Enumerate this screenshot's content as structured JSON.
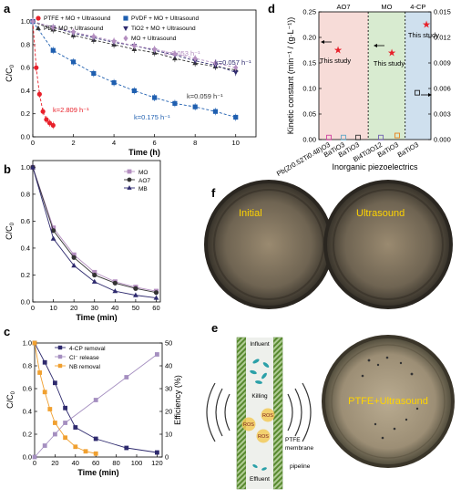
{
  "panel_labels": {
    "a": "a",
    "b": "b",
    "c": "c",
    "d": "d",
    "e": "e",
    "f": "f"
  },
  "chart_data": [
    {
      "panel": "a",
      "type": "scatter",
      "xlabel": "Time (h)",
      "ylabel": "C/C0",
      "xlim": [
        0,
        11
      ],
      "ylim": [
        0,
        1.1
      ],
      "xticks": [
        "0",
        "2",
        "4",
        "6",
        "8",
        "10"
      ],
      "yticks": [
        "0.0",
        "0.2",
        "0.4",
        "0.6",
        "0.8",
        "1.0"
      ],
      "series": [
        {
          "name": "PTFE + MO + Ultrasound",
          "color": "#e8202a",
          "marker": "circle",
          "x": [
            0,
            0.17,
            0.33,
            0.5,
            0.67,
            0.83,
            1.0
          ],
          "y": [
            1.0,
            0.6,
            0.37,
            0.22,
            0.15,
            0.12,
            0.1
          ]
        },
        {
          "name": "PE + MO + Ultrasound",
          "color": "#333333",
          "marker": "triangle-up",
          "x": [
            0,
            1,
            2,
            3,
            4,
            5,
            6,
            7,
            8,
            9,
            10
          ],
          "y": [
            1.0,
            0.93,
            0.88,
            0.84,
            0.8,
            0.76,
            0.73,
            0.68,
            0.64,
            0.61,
            0.58
          ]
        },
        {
          "name": "PVDF + MO + Ultrasound",
          "color": "#1f5fb0",
          "marker": "square",
          "x": [
            0,
            1,
            2,
            3,
            4,
            5,
            6,
            7,
            8,
            9,
            10
          ],
          "y": [
            1.0,
            0.75,
            0.65,
            0.55,
            0.47,
            0.4,
            0.34,
            0.29,
            0.26,
            0.22,
            0.17
          ]
        },
        {
          "name": "TiO2 + MO + Ultrasound",
          "color": "#2e2a6e",
          "marker": "triangle-down",
          "x": [
            0,
            1,
            2,
            3,
            4,
            5,
            6,
            7,
            8,
            9,
            10
          ],
          "y": [
            1.0,
            0.95,
            0.9,
            0.86,
            0.82,
            0.79,
            0.75,
            0.71,
            0.66,
            0.62,
            0.56
          ]
        },
        {
          "name": "MO + Ultrasound",
          "color": "#b48ec0",
          "marker": "diamond",
          "x": [
            0,
            1,
            2,
            3,
            4,
            5,
            6,
            7,
            8,
            9,
            10
          ],
          "y": [
            1.0,
            0.95,
            0.91,
            0.87,
            0.83,
            0.79,
            0.76,
            0.72,
            0.68,
            0.64,
            0.6
          ]
        }
      ],
      "annotations": [
        "k=2.809 h⁻¹",
        "k=0.175 h⁻¹",
        "k=0.053 h⁻¹",
        "k=0.057 h⁻¹",
        "k=0.059 h⁻¹"
      ]
    },
    {
      "panel": "b",
      "type": "line",
      "xlabel": "Time (min)",
      "ylabel": "C/C0",
      "xlim": [
        0,
        62
      ],
      "ylim": [
        0,
        1.05
      ],
      "xticks": [
        "0",
        "10",
        "20",
        "30",
        "40",
        "50",
        "60"
      ],
      "yticks": [
        "0.0",
        "0.2",
        "0.4",
        "0.6",
        "0.8",
        "1.0"
      ],
      "x": [
        0,
        10,
        20,
        30,
        40,
        50,
        60
      ],
      "series": [
        {
          "name": "MO",
          "color": "#b48ec0",
          "marker": "square",
          "values": [
            1.0,
            0.55,
            0.35,
            0.22,
            0.15,
            0.11,
            0.08
          ]
        },
        {
          "name": "AO7",
          "color": "#333333",
          "marker": "circle",
          "values": [
            1.0,
            0.53,
            0.33,
            0.2,
            0.14,
            0.1,
            0.07
          ]
        },
        {
          "name": "MB",
          "color": "#2e2a6e",
          "marker": "triangle-up",
          "values": [
            1.0,
            0.47,
            0.27,
            0.15,
            0.08,
            0.05,
            0.03
          ]
        }
      ]
    },
    {
      "panel": "c",
      "type": "line",
      "xlabel": "Time (min)",
      "ylabel": "C/C0",
      "y2label": "Efficiency (%)",
      "xlim": [
        0,
        125
      ],
      "ylim": [
        0,
        1.0
      ],
      "y2lim": [
        0,
        50
      ],
      "xticks": [
        "0",
        "20",
        "40",
        "60",
        "80",
        "100",
        "120"
      ],
      "yticks": [
        "0.0",
        "0.2",
        "0.4",
        "0.6",
        "0.8",
        "1.0"
      ],
      "y2ticks": [
        "0",
        "10",
        "20",
        "30",
        "40",
        "50"
      ],
      "series": [
        {
          "name": "4-CP removal",
          "color": "#2e2a6e",
          "axis": "left",
          "x": [
            0,
            10,
            20,
            30,
            40,
            60,
            90,
            120
          ],
          "y": [
            1.0,
            0.83,
            0.65,
            0.43,
            0.26,
            0.16,
            0.08,
            0.04
          ]
        },
        {
          "name": "Cl⁻ release",
          "color": "#a58fc0",
          "axis": "right",
          "x": [
            0,
            10,
            20,
            30,
            60,
            90,
            120
          ],
          "y": [
            0,
            5,
            10,
            15,
            25,
            35,
            45
          ]
        },
        {
          "name": "NB removal",
          "color": "#f0a030",
          "axis": "left",
          "x": [
            0,
            5,
            10,
            15,
            20,
            30,
            40,
            50,
            60
          ],
          "y": [
            1.0,
            0.74,
            0.57,
            0.42,
            0.3,
            0.17,
            0.09,
            0.05,
            0.03
          ]
        }
      ]
    },
    {
      "panel": "d",
      "type": "scatter",
      "xlabel": "Inorganic piezoelectrics",
      "ylabel": "Kinetic constant (min⁻¹ / (g·L⁻¹))",
      "ylim": [
        0,
        0.25
      ],
      "y2lim": [
        0,
        0.015
      ],
      "yticks": [
        "0.00",
        "0.05",
        "0.10",
        "0.15",
        "0.20",
        "0.25"
      ],
      "y2ticks": [
        "0.000",
        "0.003",
        "0.006",
        "0.009",
        "0.012",
        "0.015"
      ],
      "groups": [
        "AO7",
        "MO",
        "4-CP"
      ],
      "group_colors": [
        "#f7dcd8",
        "#d8ebd0",
        "#cfe0ee"
      ],
      "materials": [
        "Pb(Zr0.52Ti0.48)O3",
        "BaTiO3",
        "BaTiO3",
        "Bi4Ti3O12",
        "BaTiO3",
        "BaTiO3"
      ],
      "points": [
        {
          "group": "AO7",
          "material": "Pb(Zr0.52Ti0.48)O3",
          "value": 0.004,
          "color": "#d040a0"
        },
        {
          "group": "AO7",
          "material": "BaTiO3",
          "value": 0.004,
          "color": "#60a8c8"
        },
        {
          "group": "AO7",
          "material": "BaTiO3",
          "value": 0.004,
          "color": "#333333"
        },
        {
          "group": "MO",
          "material": "Bi4Ti3O12",
          "value": 0.004,
          "color": "#7060b0"
        },
        {
          "group": "MO",
          "material": "BaTiO3",
          "value": 0.008,
          "color": "#e8801a"
        },
        {
          "group": "4-CP",
          "material": "BaTiO3",
          "value": 0.0055,
          "color": "#222222"
        }
      ],
      "this_study": [
        {
          "group": "AO7",
          "value": 0.175,
          "label": "This study"
        },
        {
          "group": "MO",
          "value": 0.17,
          "label": "This study"
        },
        {
          "group": "4-CP",
          "value": 0.0135,
          "label": "This study"
        }
      ]
    }
  ],
  "panel_e": {
    "influent": "Influent",
    "killing": "Killing",
    "ros": "ROS",
    "ptfe": "PTFE",
    "membrane": "membrane",
    "effluent": "Effluent",
    "pipeline": "pipeline",
    "dish_label": "PTFE+Ultrasound"
  },
  "panel_f": {
    "initial": "Initial",
    "ultrasound": "Ultrasound"
  }
}
